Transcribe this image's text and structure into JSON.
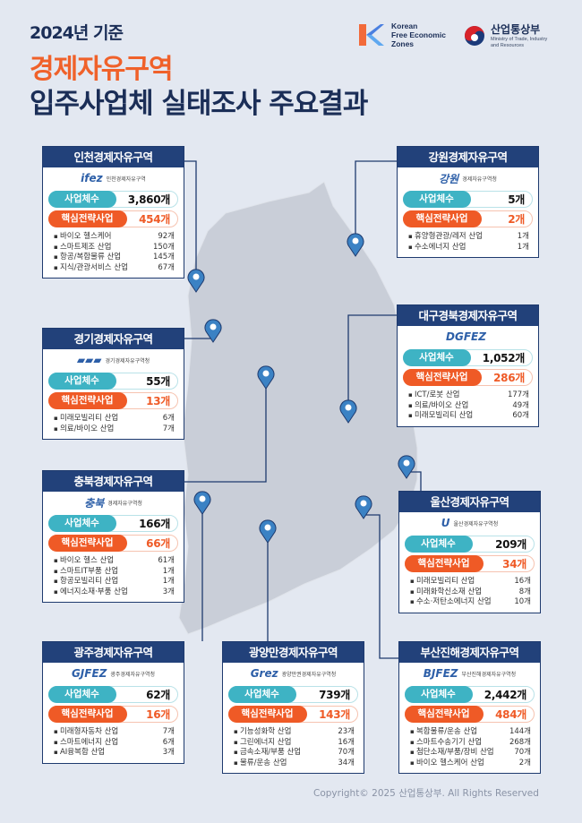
{
  "header": {
    "subtitle": "2024년 기준",
    "title_line1": "경제자유구역",
    "title_line2": "입주사업체 실태조사 주요결과"
  },
  "logos": {
    "kfez": {
      "text": [
        "Korean",
        "Free Economic",
        "Zones"
      ]
    },
    "ministry": {
      "name": "산업통상부",
      "english": [
        "Ministry of Trade, Industry",
        "and Resources"
      ]
    }
  },
  "labels": {
    "companies": "사업체수",
    "strategic": "핵심전략사업"
  },
  "colors": {
    "navy": "#22417a",
    "teal": "#3eb3c4",
    "orange": "#ef5a26",
    "pin": "#3b82c4",
    "map": "#c9ced8"
  },
  "zones": [
    {
      "id": "incheon",
      "name": "인천경제자유구역",
      "logo_mark": "ifez",
      "logo_text": "인천경제자유구역",
      "companies": "3,860개",
      "strategic": "454개",
      "items": [
        {
          "name": "바이오 헬스케어",
          "count": "92개"
        },
        {
          "name": "스마트제조 산업",
          "count": "150개"
        },
        {
          "name": "항공/복합물류 산업",
          "count": "145개"
        },
        {
          "name": "지식/관광서비스 산업",
          "count": "67개"
        }
      ]
    },
    {
      "id": "gangwon",
      "name": "강원경제자유구역",
      "logo_mark": "강원",
      "logo_text": "경제자유구역청",
      "companies": "5개",
      "strategic": "2개",
      "items": [
        {
          "name": "휴양형관광/레저 산업",
          "count": "1개"
        },
        {
          "name": "수소에너지 산업",
          "count": "1개"
        }
      ]
    },
    {
      "id": "daegu",
      "name": "대구경북경제자유구역",
      "logo_mark": "DGFEZ",
      "logo_text": "",
      "companies": "1,052개",
      "strategic": "286개",
      "items": [
        {
          "name": "ICT/로봇 산업",
          "count": "177개"
        },
        {
          "name": "의료/바이오 산업",
          "count": "49개"
        },
        {
          "name": "미래모빌리티 산업",
          "count": "60개"
        }
      ]
    },
    {
      "id": "gyeonggi",
      "name": "경기경제자유구역",
      "logo_mark": "▰▰▰",
      "logo_text": "경기경제자유구역청",
      "companies": "55개",
      "strategic": "13개",
      "items": [
        {
          "name": "미래모빌리티 산업",
          "count": "6개"
        },
        {
          "name": "의료/바이오 산업",
          "count": "7개"
        }
      ]
    },
    {
      "id": "chungbuk",
      "name": "충북경제자유구역",
      "logo_mark": "충북",
      "logo_text": "경제자유구역청",
      "companies": "166개",
      "strategic": "66개",
      "items": [
        {
          "name": "바이오 헬스 산업",
          "count": "61개"
        },
        {
          "name": "스마트IT부품 산업",
          "count": "1개"
        },
        {
          "name": "항공모빌리티 산업",
          "count": "1개"
        },
        {
          "name": "에너지소재·부품 산업",
          "count": "3개"
        }
      ]
    },
    {
      "id": "ulsan",
      "name": "울산경제자유구역",
      "logo_mark": "U",
      "logo_text": "울산경제자유구역청",
      "companies": "209개",
      "strategic": "34개",
      "items": [
        {
          "name": "미래모빌리티 산업",
          "count": "16개"
        },
        {
          "name": "미래화학신소재 산업",
          "count": "8개"
        },
        {
          "name": "수소·저탄소에너지 산업",
          "count": "10개"
        }
      ]
    },
    {
      "id": "gwangju",
      "name": "광주경제자유구역",
      "logo_mark": "GJFEZ",
      "logo_text": "광주경제자유구역청",
      "companies": "62개",
      "strategic": "16개",
      "items": [
        {
          "name": "미래형자동차 산업",
          "count": "7개"
        },
        {
          "name": "스마트에너지 산업",
          "count": "6개"
        },
        {
          "name": "AI융복합 산업",
          "count": "3개"
        }
      ]
    },
    {
      "id": "gwangyang",
      "name": "광양만경제자유구역",
      "logo_mark": "Grez",
      "logo_text": "광양만권경제자유구역청",
      "companies": "739개",
      "strategic": "143개",
      "items": [
        {
          "name": "기능성화학 산업",
          "count": "23개"
        },
        {
          "name": "그린에너지 산업",
          "count": "16개"
        },
        {
          "name": "금속소재/부품 산업",
          "count": "70개"
        },
        {
          "name": "물류/운송 산업",
          "count": "34개"
        }
      ]
    },
    {
      "id": "busan",
      "name": "부산진해경제자유구역",
      "logo_mark": "BJFEZ",
      "logo_text": "부산진해경제자유구역청",
      "companies": "2,442개",
      "strategic": "484개",
      "items": [
        {
          "name": "복합물류/운송 산업",
          "count": "144개"
        },
        {
          "name": "스마트수송기기 산업",
          "count": "268개"
        },
        {
          "name": "첨단소재/부품/장비 산업",
          "count": "70개"
        },
        {
          "name": "바이오 헬스케어 산업",
          "count": "2개"
        }
      ]
    }
  ],
  "footer": {
    "copyright": "Copyright© 2025 산업통상부. All Rights Reserved"
  }
}
